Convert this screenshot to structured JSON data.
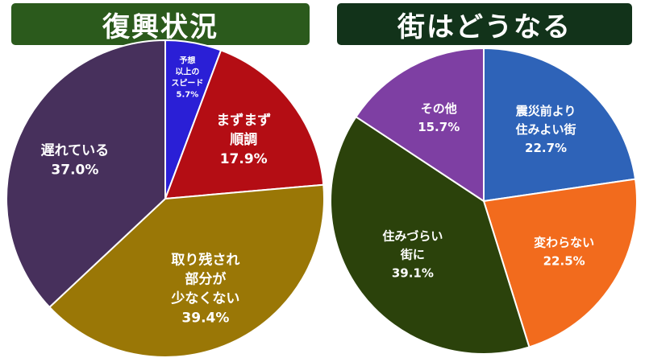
{
  "titles": {
    "left": "復興状況",
    "right": "街はどうなる"
  },
  "colors": {
    "left_title_bg": "#2b5a1c",
    "right_title_bg": "#12331a",
    "slice_border": "#ffffff"
  },
  "chart_data": [
    {
      "type": "pie",
      "title": "復興状況",
      "start_angle_deg": 0,
      "direction": "clockwise",
      "unit": "%",
      "slices": [
        {
          "label_lines": [
            "予想",
            "以上の",
            "スピード"
          ],
          "value": 5.7,
          "value_text": "5.7%",
          "color": "#2a1fd6",
          "small": true
        },
        {
          "label_lines": [
            "まずまず",
            "順調"
          ],
          "value": 17.9,
          "value_text": "17.9%",
          "color": "#b40d14"
        },
        {
          "label_lines": [
            "取り残され",
            "部分が",
            "少なくない"
          ],
          "value": 39.4,
          "value_text": "39.4%",
          "color": "#9a7706"
        },
        {
          "label_lines": [
            "遅れている"
          ],
          "value": 37.0,
          "value_text": "37.0%",
          "color": "#47305c"
        }
      ]
    },
    {
      "type": "pie",
      "title": "街はどうなる",
      "start_angle_deg": 0,
      "direction": "clockwise",
      "unit": "%",
      "slices": [
        {
          "label_lines": [
            "震災前より",
            "住みよい街"
          ],
          "value": 22.7,
          "value_text": "22.7%",
          "color": "#2e63b8"
        },
        {
          "label_lines": [
            "変わらない"
          ],
          "value": 22.5,
          "value_text": "22.5%",
          "color": "#f26b1d"
        },
        {
          "label_lines": [
            "住みづらい",
            "街に"
          ],
          "value": 39.1,
          "value_text": "39.1%",
          "color": "#2b420b"
        },
        {
          "label_lines": [
            "その他"
          ],
          "value": 15.7,
          "value_text": "15.7%",
          "color": "#7e3fa3"
        }
      ]
    }
  ]
}
